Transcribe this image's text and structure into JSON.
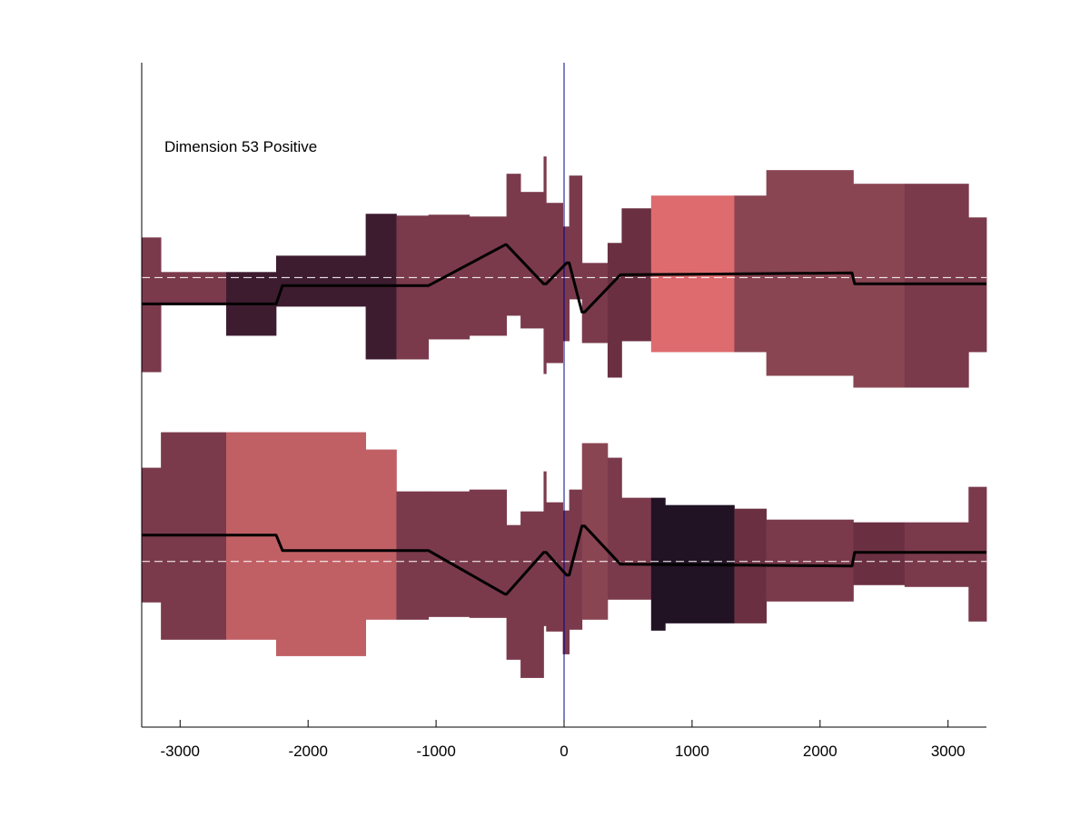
{
  "chart_data": {
    "type": "area",
    "title": "",
    "xlabel": "",
    "ylabel": "",
    "annotation": "Dimension 53 Positive",
    "xlim": [
      -3300,
      3300
    ],
    "ylim": [
      0,
      730
    ],
    "xticks": [
      -3000,
      -2000,
      -1000,
      0,
      1000,
      2000,
      3000
    ],
    "grid": false,
    "reference_line_x": 0,
    "zero_line_color": "#00008b",
    "dashed_baseline_color": "#ffffff",
    "step_line_color": "#000000",
    "panels": [
      {
        "name": "upper",
        "baseline": 494,
        "bands": [
          {
            "x0": -3300,
            "x1": -3150,
            "lo": 390,
            "hi": 538,
            "color": "#7a3a4c"
          },
          {
            "x0": -3150,
            "x1": -2640,
            "lo": 464,
            "hi": 500,
            "color": "#7a3a4c"
          },
          {
            "x0": -2640,
            "x1": -2250,
            "lo": 430,
            "hi": 500,
            "color": "#3e1c30"
          },
          {
            "x0": -2250,
            "x1": -1550,
            "lo": 462,
            "hi": 518,
            "color": "#3e1c30"
          },
          {
            "x0": -1550,
            "x1": -1310,
            "lo": 404,
            "hi": 564,
            "color": "#3e1c30"
          },
          {
            "x0": -1310,
            "x1": -1060,
            "lo": 404,
            "hi": 562,
            "color": "#7a3a4c"
          },
          {
            "x0": -1060,
            "x1": -740,
            "lo": 426,
            "hi": 563,
            "color": "#7a3a4c"
          },
          {
            "x0": -740,
            "x1": -450,
            "lo": 430,
            "hi": 561,
            "color": "#7a3a4c"
          },
          {
            "x0": -450,
            "x1": -340,
            "lo": 452,
            "hi": 608,
            "color": "#7a3a4c"
          },
          {
            "x0": -340,
            "x1": -160,
            "lo": 438,
            "hi": 588,
            "color": "#7a3a4c"
          },
          {
            "x0": -160,
            "x1": -140,
            "lo": 388,
            "hi": 627,
            "color": "#7a3a4c"
          },
          {
            "x0": -140,
            "x1": -10,
            "lo": 400,
            "hi": 576,
            "color": "#7a3a4c"
          },
          {
            "x0": -10,
            "x1": 40,
            "lo": 424,
            "hi": 550,
            "color": "#7a3a4c"
          },
          {
            "x0": 40,
            "x1": 140,
            "lo": 470,
            "hi": 606,
            "color": "#7a3a4c"
          },
          {
            "x0": 140,
            "x1": 340,
            "lo": 422,
            "hi": 510,
            "color": "#7a3a4c"
          },
          {
            "x0": 340,
            "x1": 450,
            "lo": 384,
            "hi": 532,
            "color": "#6a3042"
          },
          {
            "x0": 450,
            "x1": 680,
            "lo": 424,
            "hi": 570,
            "color": "#6a3042"
          },
          {
            "x0": 680,
            "x1": 1330,
            "lo": 412,
            "hi": 584,
            "color": "#de6b6e"
          },
          {
            "x0": 1330,
            "x1": 1580,
            "lo": 412,
            "hi": 584,
            "color": "#8a4553"
          },
          {
            "x0": 1580,
            "x1": 2260,
            "lo": 386,
            "hi": 612,
            "color": "#8a4553"
          },
          {
            "x0": 2260,
            "x1": 2660,
            "lo": 373,
            "hi": 597,
            "color": "#8a4553"
          },
          {
            "x0": 2660,
            "x1": 3160,
            "lo": 373,
            "hi": 597,
            "color": "#7a3a4c"
          },
          {
            "x0": 3160,
            "x1": 3300,
            "lo": 412,
            "hi": 560,
            "color": "#7a3a4c"
          }
        ],
        "step_line": {
          "x": [
            -3300,
            -2250,
            -2200,
            -1060,
            -460,
            -450,
            -160,
            -140,
            20,
            40,
            140,
            160,
            440,
            460,
            2250,
            2270,
            3300
          ],
          "y": [
            465,
            465,
            485,
            485,
            530,
            530,
            487,
            487,
            510,
            510,
            456,
            456,
            497,
            497,
            499,
            487,
            487
          ]
        }
      },
      {
        "name": "lower",
        "baseline": 182,
        "bands": [
          {
            "x0": -3300,
            "x1": -3150,
            "lo": 137,
            "hi": 285,
            "color": "#7a3a4c"
          },
          {
            "x0": -3150,
            "x1": -2640,
            "lo": 96,
            "hi": 324,
            "color": "#7a3a4c"
          },
          {
            "x0": -2640,
            "x1": -2250,
            "lo": 96,
            "hi": 324,
            "color": "#c06065"
          },
          {
            "x0": -2250,
            "x1": -1550,
            "lo": 78,
            "hi": 324,
            "color": "#c06065"
          },
          {
            "x0": -1550,
            "x1": -1310,
            "lo": 118,
            "hi": 305,
            "color": "#c06065"
          },
          {
            "x0": -1310,
            "x1": -1060,
            "lo": 118,
            "hi": 259,
            "color": "#7a3a4c"
          },
          {
            "x0": -1060,
            "x1": -740,
            "lo": 121,
            "hi": 259,
            "color": "#7a3a4c"
          },
          {
            "x0": -740,
            "x1": -450,
            "lo": 120,
            "hi": 261,
            "color": "#7a3a4c"
          },
          {
            "x0": -450,
            "x1": -340,
            "lo": 74,
            "hi": 222,
            "color": "#7a3a4c"
          },
          {
            "x0": -340,
            "x1": -160,
            "lo": 54,
            "hi": 237,
            "color": "#7a3a4c"
          },
          {
            "x0": -160,
            "x1": -140,
            "lo": 111,
            "hi": 281,
            "color": "#7a3a4c"
          },
          {
            "x0": -140,
            "x1": -10,
            "lo": 105,
            "hi": 247,
            "color": "#7a3a4c"
          },
          {
            "x0": -10,
            "x1": 40,
            "lo": 80,
            "hi": 238,
            "color": "#7a3a4c"
          },
          {
            "x0": 40,
            "x1": 140,
            "lo": 107,
            "hi": 261,
            "color": "#7a3a4c"
          },
          {
            "x0": 140,
            "x1": 340,
            "lo": 118,
            "hi": 312,
            "color": "#8a4553"
          },
          {
            "x0": 340,
            "x1": 450,
            "lo": 140,
            "hi": 296,
            "color": "#7a3a4c"
          },
          {
            "x0": 450,
            "x1": 680,
            "lo": 140,
            "hi": 252,
            "color": "#7a3a4c"
          },
          {
            "x0": 680,
            "x1": 790,
            "lo": 106,
            "hi": 252,
            "color": "#211224"
          },
          {
            "x0": 790,
            "x1": 1330,
            "lo": 114,
            "hi": 244,
            "color": "#211224"
          },
          {
            "x0": 1330,
            "x1": 1580,
            "lo": 114,
            "hi": 240,
            "color": "#6a3042"
          },
          {
            "x0": 1580,
            "x1": 2260,
            "lo": 138,
            "hi": 228,
            "color": "#7a3a4c"
          },
          {
            "x0": 2260,
            "x1": 2660,
            "lo": 156,
            "hi": 225,
            "color": "#6a3042"
          },
          {
            "x0": 2660,
            "x1": 3160,
            "lo": 154,
            "hi": 225,
            "color": "#7a3a4c"
          },
          {
            "x0": 3160,
            "x1": 3300,
            "lo": 116,
            "hi": 264,
            "color": "#7a3a4c"
          }
        ],
        "step_line": {
          "x": [
            -3300,
            -2250,
            -2200,
            -1060,
            -460,
            -450,
            -160,
            -140,
            20,
            40,
            140,
            160,
            440,
            460,
            2250,
            2270,
            3300
          ],
          "y": [
            211,
            211,
            194,
            194,
            146,
            146,
            192,
            192,
            167,
            167,
            221,
            221,
            179,
            179,
            177,
            192,
            192
          ]
        }
      }
    ]
  }
}
